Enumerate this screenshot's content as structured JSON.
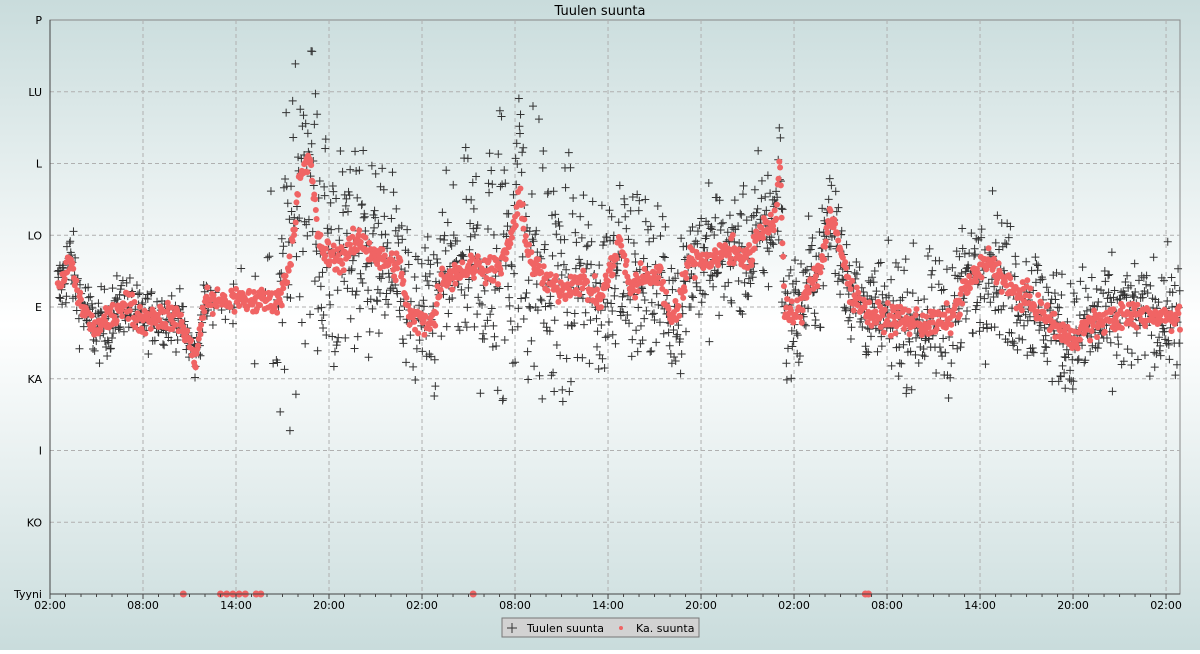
{
  "chart_data": {
    "type": "scatter",
    "title": "Tuulen suunta",
    "xlabel": "",
    "ylabel": "",
    "xlim_hours": [
      0,
      72.9
    ],
    "x_ticks": [
      {
        "hour": 0,
        "label": "02:00"
      },
      {
        "hour": 6,
        "label": "08:00"
      },
      {
        "hour": 12,
        "label": "14:00"
      },
      {
        "hour": 18,
        "label": "20:00"
      },
      {
        "hour": 24,
        "label": "02:00"
      },
      {
        "hour": 30,
        "label": "08:00"
      },
      {
        "hour": 36,
        "label": "14:00"
      },
      {
        "hour": 42,
        "label": "20:00"
      },
      {
        "hour": 48,
        "label": "02:00"
      },
      {
        "hour": 54,
        "label": "08:00"
      },
      {
        "hour": 60,
        "label": "14:00"
      },
      {
        "hour": 66,
        "label": "20:00"
      },
      {
        "hour": 72,
        "label": "02:00"
      }
    ],
    "ylim_degrees": [
      0,
      360
    ],
    "y_ticks": [
      {
        "deg": 0,
        "label": "Tyyni"
      },
      {
        "deg": 45,
        "label": "KO"
      },
      {
        "deg": 90,
        "label": "I"
      },
      {
        "deg": 135,
        "label": "KA"
      },
      {
        "deg": 180,
        "label": "E"
      },
      {
        "deg": 225,
        "label": "LO"
      },
      {
        "deg": 270,
        "label": "L"
      },
      {
        "deg": 315,
        "label": "LU"
      },
      {
        "deg": 360,
        "label": "P"
      }
    ],
    "grid": true,
    "legend_position": "bottom-center",
    "series": [
      {
        "name": "Tuulen suunta",
        "marker": "plus",
        "color": "#333333",
        "note_spread_deg": [
          [
            0,
            18
          ],
          [
            10,
            10
          ],
          [
            14,
            30
          ],
          [
            15,
            70
          ],
          [
            20,
            45
          ],
          [
            24,
            30
          ],
          [
            27,
            45
          ],
          [
            29,
            80
          ],
          [
            34,
            45
          ],
          [
            40,
            30
          ],
          [
            46,
            30
          ],
          [
            52,
            22
          ],
          [
            60,
            30
          ],
          [
            72.9,
            22
          ]
        ]
      },
      {
        "name": "Ka. suunta",
        "marker": "circle",
        "color": "#f06464",
        "mean_deg": [
          [
            0.6,
            190
          ],
          [
            1.3,
            210
          ],
          [
            1.9,
            184
          ],
          [
            2.9,
            166
          ],
          [
            3.9,
            172
          ],
          [
            4.8,
            184
          ],
          [
            5.8,
            172
          ],
          [
            7.1,
            175
          ],
          [
            8.4,
            172
          ],
          [
            9.4,
            147
          ],
          [
            10,
            184
          ],
          [
            14.8,
            184
          ],
          [
            15.5,
            210
          ],
          [
            16.1,
            260
          ],
          [
            16.8,
            272
          ],
          [
            17.4,
            216
          ],
          [
            18.7,
            210
          ],
          [
            20,
            222
          ],
          [
            21.3,
            210
          ],
          [
            22.6,
            205
          ],
          [
            23.2,
            172
          ],
          [
            24.8,
            172
          ],
          [
            25.2,
            197
          ],
          [
            26.5,
            203
          ],
          [
            27.7,
            206
          ],
          [
            29,
            203
          ],
          [
            29.7,
            222
          ],
          [
            30.3,
            247
          ],
          [
            31,
            210
          ],
          [
            31.9,
            197
          ],
          [
            32.9,
            191
          ],
          [
            34.2,
            197
          ],
          [
            35.5,
            184
          ],
          [
            36.8,
            222
          ],
          [
            37.4,
            191
          ],
          [
            38.1,
            197
          ],
          [
            39.4,
            200
          ],
          [
            40,
            172
          ],
          [
            40.6,
            184
          ],
          [
            41.3,
            210
          ],
          [
            42.6,
            210
          ],
          [
            43.9,
            216
          ],
          [
            45.2,
            210
          ],
          [
            45.8,
            228
          ],
          [
            46.8,
            235
          ],
          [
            47.1,
            272
          ],
          [
            47.4,
            175
          ],
          [
            48.4,
            176
          ],
          [
            49,
            197
          ],
          [
            49.7,
            203
          ],
          [
            50.3,
            238
          ],
          [
            51,
            216
          ],
          [
            51.6,
            191
          ],
          [
            52.9,
            175
          ],
          [
            54.8,
            172
          ],
          [
            56.8,
            169
          ],
          [
            58.1,
            172
          ],
          [
            59,
            191
          ],
          [
            60.6,
            210
          ],
          [
            61.9,
            191
          ],
          [
            63.2,
            184
          ],
          [
            64.5,
            172
          ],
          [
            65.8,
            159
          ],
          [
            67.1,
            169
          ],
          [
            68.4,
            172
          ],
          [
            70.3,
            175
          ],
          [
            72.9,
            174
          ]
        ],
        "calm_hours": [
          8.6,
          11.0,
          11.4,
          11.8,
          12.2,
          12.6,
          13.3,
          13.6,
          27.3,
          52.6,
          52.8
        ]
      }
    ]
  }
}
